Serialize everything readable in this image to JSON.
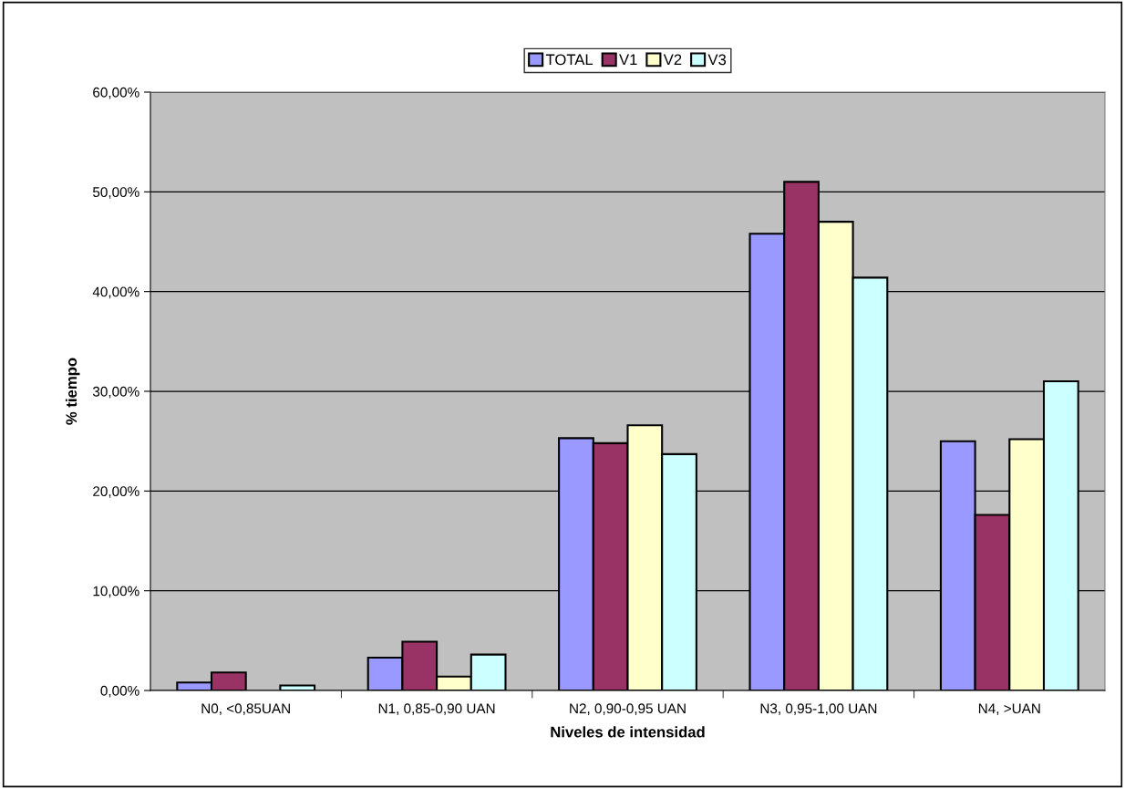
{
  "chart_data": {
    "type": "bar",
    "xlabel": "Niveles de intensidad",
    "ylabel": "% tiempo",
    "categories": [
      "N0, <0,85UAN",
      "N1, 0,85-0,90 UAN",
      "N2, 0,90-0,95 UAN",
      "N3, 0,95-1,00 UAN",
      "N4, >UAN"
    ],
    "series": [
      {
        "name": "TOTAL",
        "color": "#9999ff",
        "values": [
          0.8,
          3.3,
          25.3,
          45.8,
          25.0
        ]
      },
      {
        "name": "V1",
        "color": "#993366",
        "values": [
          1.8,
          4.9,
          24.8,
          51.0,
          17.6
        ]
      },
      {
        "name": "V2",
        "color": "#ffffcc",
        "values": [
          null,
          1.4,
          26.6,
          47.0,
          25.2
        ]
      },
      {
        "name": "V3",
        "color": "#ccffff",
        "values": [
          0.5,
          3.6,
          23.7,
          41.4,
          31.0
        ]
      }
    ],
    "ylim": [
      0,
      60
    ],
    "yticks": [
      {
        "value": 0,
        "label": "0,00%"
      },
      {
        "value": 10,
        "label": "10,00%"
      },
      {
        "value": 20,
        "label": "20,00%"
      },
      {
        "value": 30,
        "label": "30,00%"
      },
      {
        "value": 40,
        "label": "40,00%"
      },
      {
        "value": 50,
        "label": "50,00%"
      },
      {
        "value": 60,
        "label": "60,00%"
      }
    ],
    "grid": "y",
    "legend": "top"
  }
}
